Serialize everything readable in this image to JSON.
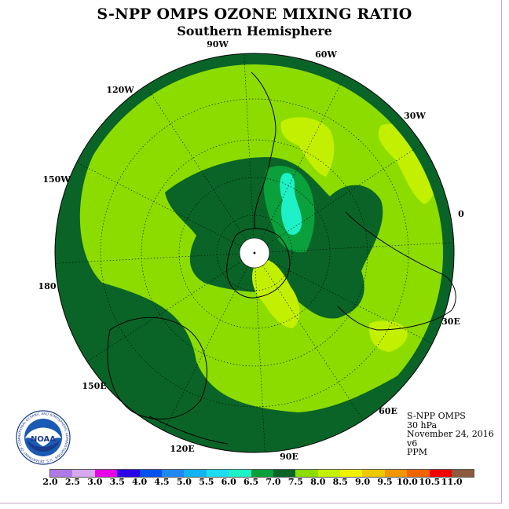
{
  "header": {
    "title": "S-NPP OMPS OZONE MIXING RATIO",
    "subtitle": "Southern Hemisphere"
  },
  "longitude_labels": [
    "90W",
    "60W",
    "30W",
    "0",
    "30E",
    "60E",
    "90E",
    "120E",
    "150E",
    "180",
    "150W",
    "120W"
  ],
  "info": {
    "instrument": "S-NPP OMPS",
    "level": "30 hPa",
    "date": "November 24, 2016",
    "version": "v6",
    "units": "PPM"
  },
  "logo": {
    "text": "NOAA",
    "ring_text": "NATIONAL OCEANIC AND ATMOSPHERIC ADMINISTRATION · U.S. DEPARTMENT OF COMMERCE"
  },
  "colorbar": {
    "ticks": [
      "2.0",
      "2.5",
      "3.0",
      "3.5",
      "4.0",
      "4.5",
      "5.0",
      "5.5",
      "6.0",
      "6.5",
      "7.0",
      "7.5",
      "8.0",
      "8.5",
      "9.0",
      "9.5",
      "10.0",
      "10.5",
      "11.0"
    ],
    "colors": [
      "#b07ae6",
      "#d6a8f0",
      "#e600e6",
      "#2a00e6",
      "#0050f0",
      "#1e88f0",
      "#14b4f0",
      "#1edcf0",
      "#1ef0c8",
      "#0aa03c",
      "#0a6428",
      "#8cdc00",
      "#c3f000",
      "#f0f000",
      "#f0c800",
      "#f09600",
      "#f06400",
      "#f00000",
      "#8c5a3c"
    ]
  },
  "field_colors": {
    "dark_green": "#0a6428",
    "mid_green": "#0aa03c",
    "light_green": "#8cdc00",
    "yellow_green": "#c3f000",
    "cyan": "#1ef0c8",
    "teal": "#1edcf0"
  }
}
